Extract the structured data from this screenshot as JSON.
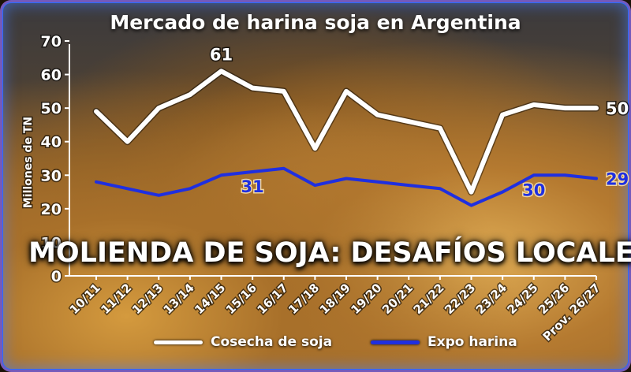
{
  "chart_data": {
    "type": "line",
    "title": "Mercado de harina soja en Argentina",
    "ylabel": "Millones de TN",
    "ylim": [
      0,
      70
    ],
    "yticks": [
      0,
      10,
      20,
      30,
      40,
      50,
      60,
      70
    ],
    "categories": [
      "10/11",
      "11/12",
      "12/13",
      "13/14",
      "14/15",
      "15/16",
      "16/17",
      "17/18",
      "18/19",
      "19/20",
      "20/21",
      "21/22",
      "22/23",
      "23/24",
      "24/25",
      "25/26",
      "Prov. 26/27"
    ],
    "series": [
      {
        "name": "Cosecha de soja",
        "color": "#ffffff",
        "values": [
          49,
          40,
          50,
          54,
          61,
          56,
          55,
          38,
          55,
          48,
          46,
          44,
          25,
          48,
          51,
          50,
          50
        ]
      },
      {
        "name": "Expo harina",
        "color": "#1f2fe0",
        "values": [
          28,
          26,
          24,
          26,
          30,
          31,
          32,
          27,
          29,
          28,
          27,
          26,
          21,
          25,
          30,
          30,
          29
        ]
      }
    ],
    "data_labels": [
      {
        "series": 0,
        "index": 4,
        "text": "61"
      },
      {
        "series": 0,
        "index": 16,
        "text": "50"
      },
      {
        "series": 1,
        "index": 5,
        "text": "31"
      },
      {
        "series": 1,
        "index": 14,
        "text": "30"
      },
      {
        "series": 1,
        "index": 16,
        "text": "29"
      }
    ],
    "headline": "MOLIENDA DE SOJA: DESAFÍOS LOCALES",
    "grid": false,
    "legend_position": "bottom"
  }
}
